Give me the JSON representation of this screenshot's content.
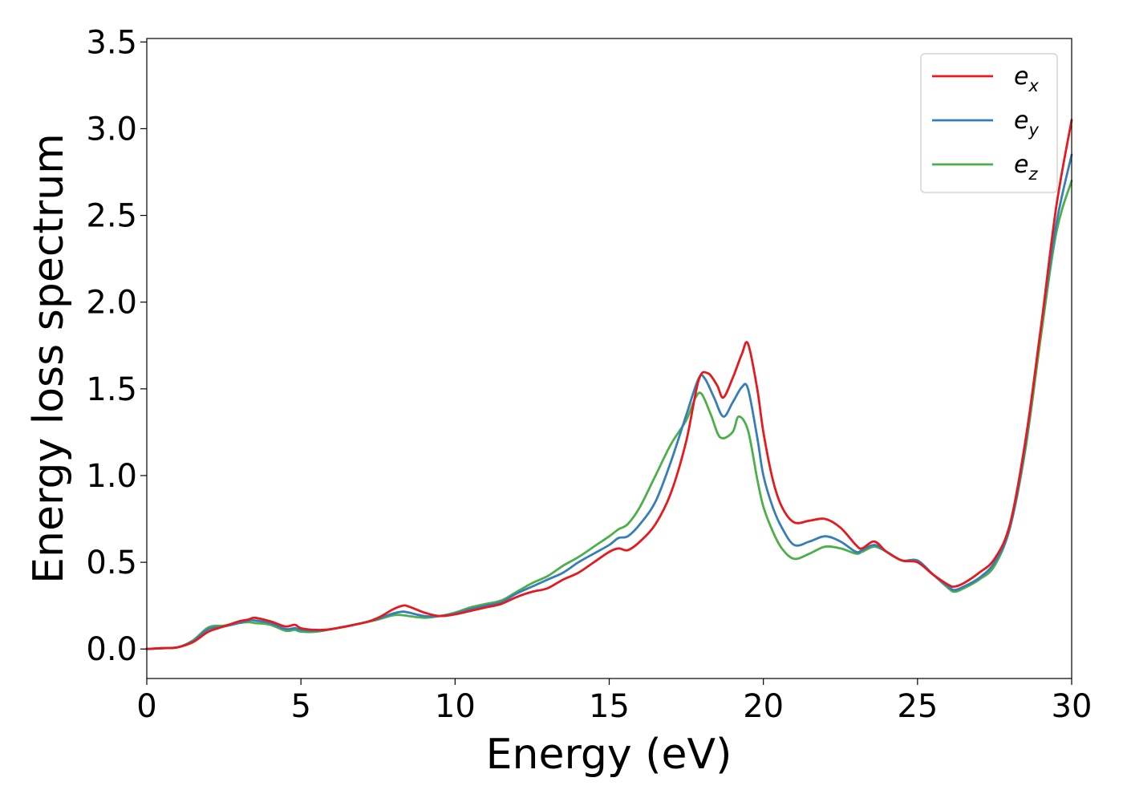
{
  "chart_data": {
    "type": "line",
    "title": "",
    "xlabel": "Energy (eV)",
    "ylabel": "Energy loss spectrum",
    "xlim": [
      0,
      30
    ],
    "ylim": [
      -0.17,
      3.52
    ],
    "xticks": [
      0,
      5,
      10,
      15,
      20,
      25,
      30
    ],
    "xtick_labels": [
      "0",
      "5",
      "10",
      "15",
      "20",
      "25",
      "30"
    ],
    "yticks": [
      0.0,
      0.5,
      1.0,
      1.5,
      2.0,
      2.5,
      3.0,
      3.5
    ],
    "ytick_labels": [
      "0.0",
      "0.5",
      "1.0",
      "1.5",
      "2.0",
      "2.5",
      "3.0",
      "3.5"
    ],
    "grid": false,
    "legend_position": "top-right",
    "series": [
      {
        "name": "e",
        "sub": "x",
        "color": "#e41a1c",
        "x": [
          0,
          0.5,
          1.0,
          1.5,
          2.0,
          2.5,
          3.0,
          3.3,
          3.5,
          4.0,
          4.5,
          4.8,
          5.0,
          5.5,
          6.0,
          7.0,
          7.5,
          8.0,
          8.3,
          8.5,
          9.0,
          9.5,
          10.0,
          10.5,
          11.0,
          11.5,
          12.0,
          12.5,
          13.0,
          13.5,
          14.0,
          14.5,
          15.0,
          15.3,
          15.6,
          16.0,
          16.5,
          17.0,
          17.5,
          17.9,
          18.2,
          18.5,
          18.7,
          19.0,
          19.3,
          19.5,
          19.8,
          20.0,
          20.3,
          20.6,
          21.0,
          21.5,
          22.0,
          22.5,
          23.0,
          23.2,
          23.6,
          24.0,
          24.5,
          25.0,
          25.5,
          26.0,
          26.2,
          26.5,
          27.0,
          27.5,
          28.0,
          28.5,
          29.0,
          29.5,
          30.0
        ],
        "y": [
          0.0,
          0.005,
          0.01,
          0.04,
          0.1,
          0.13,
          0.16,
          0.17,
          0.18,
          0.16,
          0.13,
          0.14,
          0.12,
          0.11,
          0.115,
          0.15,
          0.18,
          0.23,
          0.25,
          0.245,
          0.21,
          0.19,
          0.2,
          0.22,
          0.24,
          0.26,
          0.3,
          0.33,
          0.35,
          0.4,
          0.44,
          0.5,
          0.56,
          0.58,
          0.57,
          0.62,
          0.72,
          0.9,
          1.2,
          1.55,
          1.59,
          1.52,
          1.45,
          1.56,
          1.7,
          1.76,
          1.5,
          1.25,
          0.98,
          0.82,
          0.73,
          0.74,
          0.75,
          0.7,
          0.6,
          0.58,
          0.62,
          0.56,
          0.51,
          0.5,
          0.43,
          0.37,
          0.36,
          0.38,
          0.44,
          0.52,
          0.72,
          1.2,
          1.85,
          2.55,
          3.05
        ]
      },
      {
        "name": "e",
        "sub": "y",
        "color": "#377eb8",
        "x": [
          0,
          0.5,
          1.0,
          1.5,
          2.0,
          2.5,
          3.0,
          3.3,
          3.5,
          4.0,
          4.5,
          4.8,
          5.0,
          5.5,
          6.0,
          7.0,
          7.5,
          8.0,
          8.3,
          8.5,
          9.0,
          9.5,
          10.0,
          10.5,
          11.0,
          11.5,
          12.0,
          12.5,
          13.0,
          13.5,
          14.0,
          14.5,
          15.0,
          15.3,
          15.6,
          16.0,
          16.5,
          17.0,
          17.5,
          17.9,
          18.1,
          18.4,
          18.7,
          19.0,
          19.3,
          19.5,
          19.8,
          20.0,
          20.3,
          20.6,
          21.0,
          21.5,
          22.0,
          22.5,
          23.0,
          23.2,
          23.6,
          24.0,
          24.5,
          25.0,
          25.5,
          26.0,
          26.2,
          26.5,
          27.0,
          27.5,
          28.0,
          28.5,
          29.0,
          29.5,
          30.0
        ],
        "y": [
          0.0,
          0.005,
          0.01,
          0.045,
          0.115,
          0.13,
          0.15,
          0.165,
          0.165,
          0.15,
          0.115,
          0.12,
          0.11,
          0.105,
          0.115,
          0.15,
          0.175,
          0.205,
          0.215,
          0.21,
          0.19,
          0.19,
          0.205,
          0.23,
          0.25,
          0.27,
          0.32,
          0.36,
          0.4,
          0.44,
          0.5,
          0.55,
          0.6,
          0.64,
          0.65,
          0.72,
          0.85,
          1.08,
          1.35,
          1.56,
          1.56,
          1.45,
          1.34,
          1.42,
          1.51,
          1.5,
          1.22,
          1.0,
          0.82,
          0.7,
          0.6,
          0.62,
          0.65,
          0.62,
          0.56,
          0.57,
          0.6,
          0.56,
          0.51,
          0.51,
          0.43,
          0.36,
          0.34,
          0.36,
          0.41,
          0.5,
          0.7,
          1.18,
          1.85,
          2.45,
          2.85
        ]
      },
      {
        "name": "e",
        "sub": "z",
        "color": "#4daf4a",
        "x": [
          0,
          0.5,
          1.0,
          1.5,
          2.0,
          2.5,
          3.0,
          3.3,
          3.5,
          4.0,
          4.5,
          4.8,
          5.0,
          5.5,
          6.0,
          7.0,
          7.5,
          8.0,
          8.3,
          8.5,
          9.0,
          9.5,
          10.0,
          10.5,
          11.0,
          11.5,
          12.0,
          12.5,
          13.0,
          13.5,
          14.0,
          14.5,
          15.0,
          15.3,
          15.6,
          16.0,
          16.5,
          17.0,
          17.5,
          17.8,
          18.0,
          18.3,
          18.6,
          19.0,
          19.2,
          19.5,
          19.8,
          20.0,
          20.3,
          20.6,
          21.0,
          21.5,
          22.0,
          22.5,
          23.0,
          23.2,
          23.6,
          24.0,
          24.5,
          25.0,
          25.5,
          26.0,
          26.2,
          26.5,
          27.0,
          27.5,
          28.0,
          28.5,
          29.0,
          29.5,
          30.0
        ],
        "y": [
          0.0,
          0.005,
          0.01,
          0.05,
          0.125,
          0.135,
          0.15,
          0.155,
          0.15,
          0.14,
          0.105,
          0.11,
          0.1,
          0.1,
          0.115,
          0.15,
          0.17,
          0.195,
          0.195,
          0.19,
          0.18,
          0.19,
          0.21,
          0.24,
          0.26,
          0.28,
          0.33,
          0.38,
          0.42,
          0.48,
          0.53,
          0.59,
          0.65,
          0.69,
          0.72,
          0.82,
          1.0,
          1.18,
          1.32,
          1.45,
          1.47,
          1.35,
          1.22,
          1.25,
          1.34,
          1.26,
          0.98,
          0.82,
          0.68,
          0.58,
          0.52,
          0.55,
          0.59,
          0.58,
          0.55,
          0.56,
          0.59,
          0.56,
          0.51,
          0.51,
          0.43,
          0.35,
          0.33,
          0.35,
          0.4,
          0.48,
          0.7,
          1.15,
          1.8,
          2.4,
          2.7
        ]
      }
    ]
  }
}
